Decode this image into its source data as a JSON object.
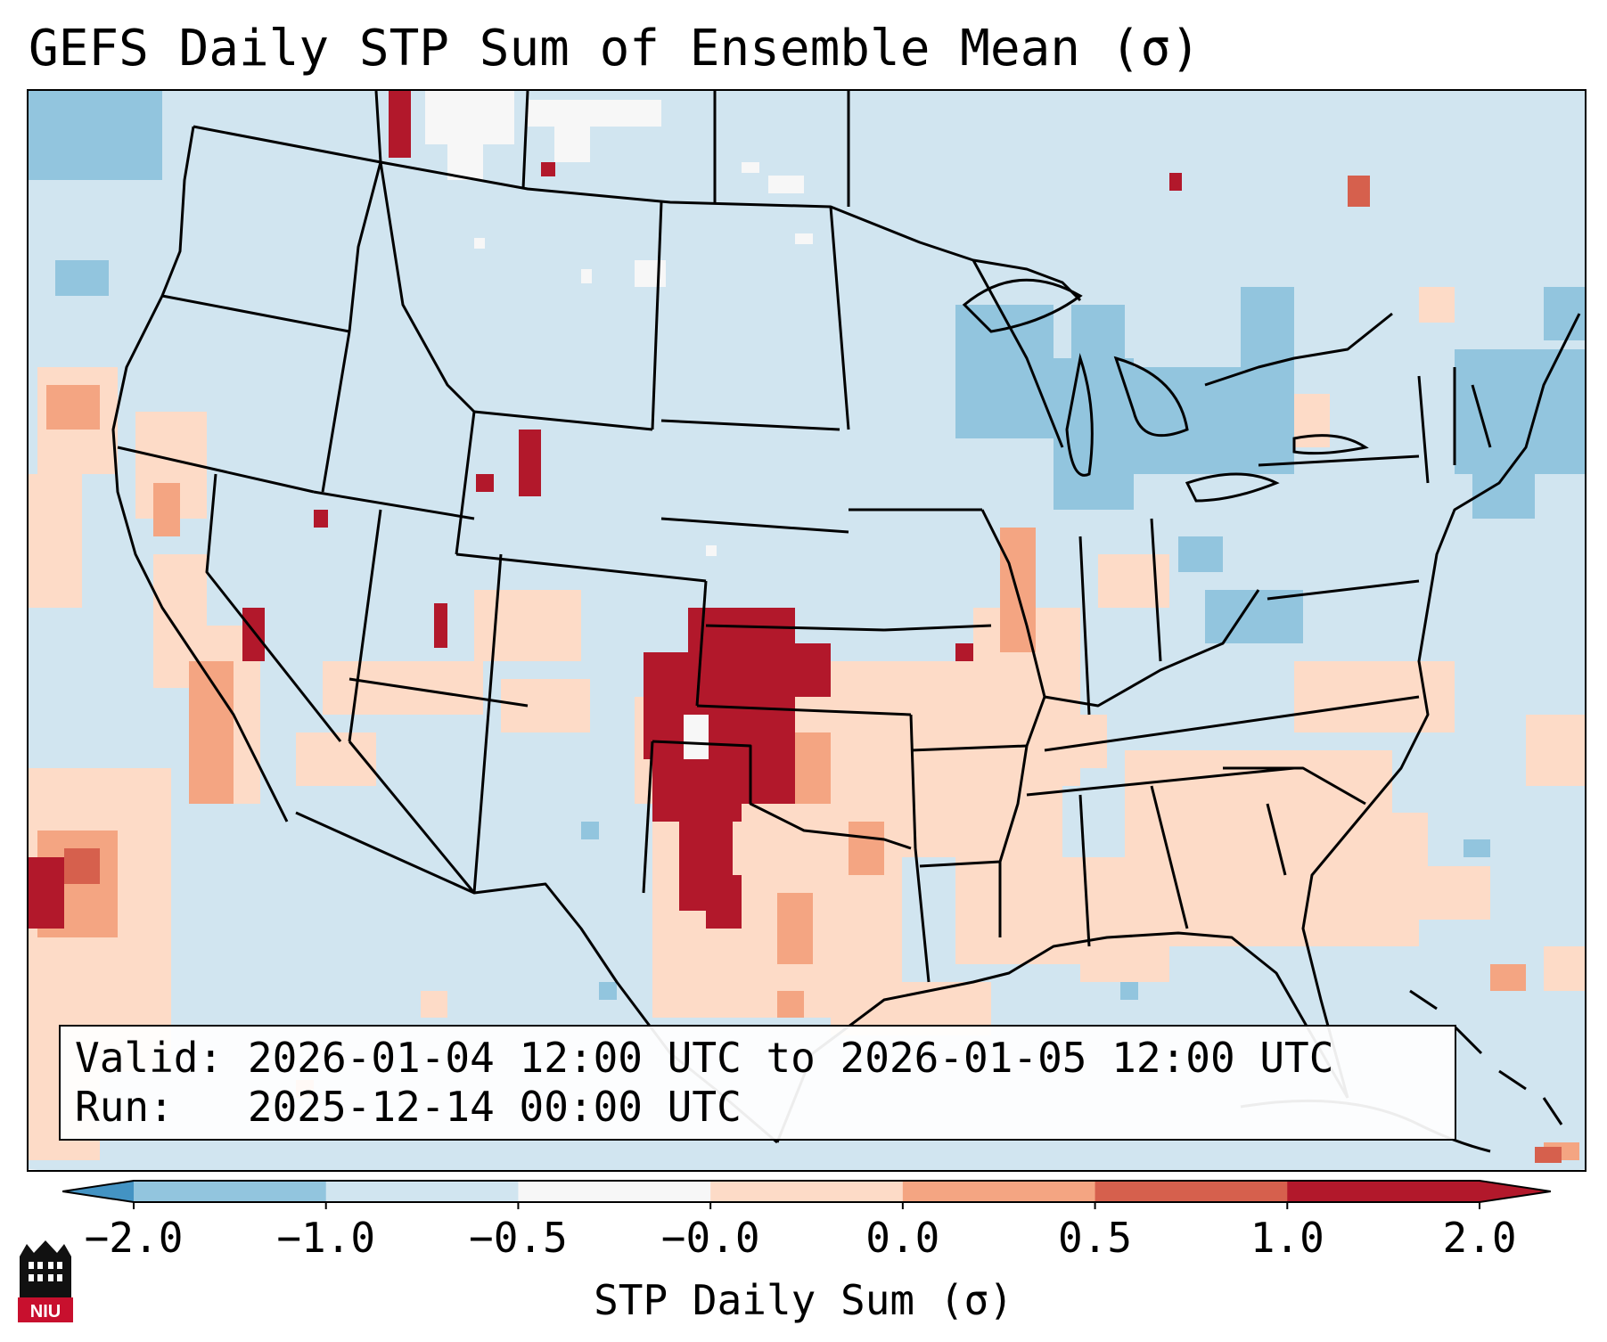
{
  "title": "GEFS Daily STP Sum of Ensemble Mean (σ)",
  "info": {
    "valid_label": "Valid:",
    "valid_value": "2026-01-04 12:00 UTC to 2026-01-05 12:00 UTC",
    "run_label": "Run:",
    "run_value": "2025-12-14 00:00 UTC"
  },
  "colorbar": {
    "label": "STP Daily Sum (σ)",
    "ticks": [
      "−2.0",
      "−1.0",
      "−0.5",
      "−0.0",
      "0.0",
      "0.5",
      "1.0",
      "2.0"
    ],
    "colors": [
      "#4393c3",
      "#92c5de",
      "#d1e5f0",
      "#f7f7f7",
      "#fddbc7",
      "#f4a582",
      "#d6604d",
      "#b2182b"
    ],
    "extend": "both"
  },
  "map": {
    "projection": "Lambert conformal, CONUS",
    "field": "GEFS ensemble mean daily STP sum anomaly",
    "background_color": "#d1e5f0",
    "max_anomaly_region": "Oklahoma / northwest Texas"
  },
  "logo": {
    "text": "NIU",
    "name": "niu-logo"
  }
}
